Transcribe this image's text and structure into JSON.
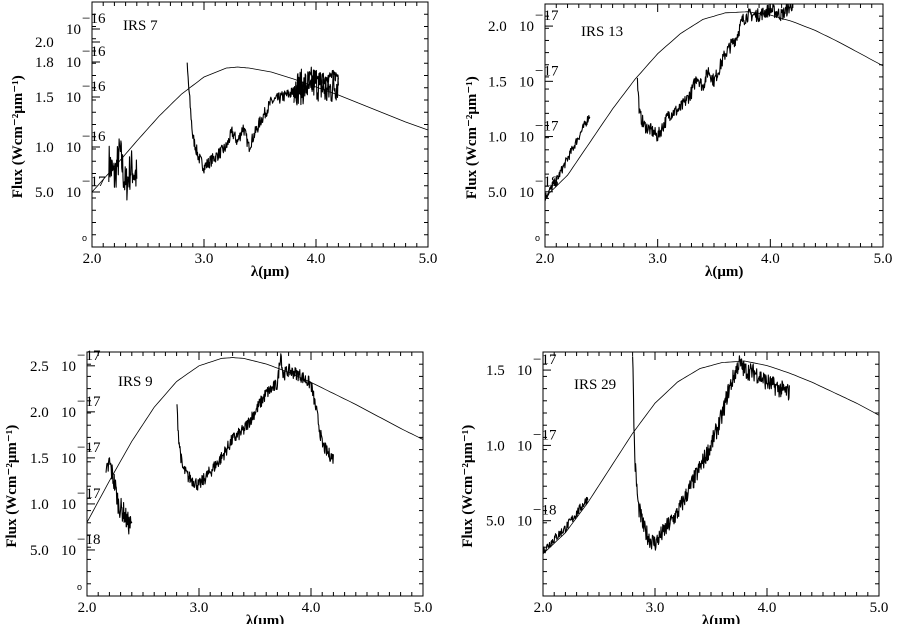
{
  "chart_data": [
    {
      "type": "line",
      "panel_label": "IRS 7",
      "xlabel": "λ(μm)",
      "ylabel": "Flux (Wcm⁻²μm⁻¹)",
      "xlim": [
        2.0,
        5.0
      ],
      "ylim": [
        0.0,
        2.45
      ],
      "x_ticks": [
        "2.0",
        "3.0",
        "4.0",
        "5.0"
      ],
      "y_ticks": [
        {
          "value": 0.55,
          "coef": "5.0",
          "pow": "10",
          "exp": "−17"
        },
        {
          "value": 1.0,
          "coef": "1.0",
          "pow": "10",
          "exp": "−16"
        },
        {
          "value": 1.5,
          "coef": "1.5",
          "pow": "10",
          "exp": "−16"
        },
        {
          "value": 1.85,
          "coef": "1.8",
          "pow": "10",
          "exp": "−16"
        },
        {
          "value": 2.05,
          "coef": "2.0",
          "pow": "",
          "exp": ""
        },
        {
          "value": 2.18,
          "coef": "",
          "pow": "10",
          "exp": "−16"
        }
      ],
      "zero_marker": "o",
      "series": [
        {
          "kind": "model",
          "x": [
            2.0,
            2.2,
            2.4,
            2.6,
            2.8,
            3.0,
            3.2,
            3.3,
            3.4,
            3.6,
            3.8,
            4.0,
            4.2,
            4.4,
            4.6,
            4.8,
            5.0
          ],
          "y": [
            0.55,
            0.8,
            1.06,
            1.31,
            1.53,
            1.7,
            1.79,
            1.8,
            1.79,
            1.75,
            1.68,
            1.6,
            1.52,
            1.43,
            1.34,
            1.25,
            1.17
          ]
        },
        {
          "kind": "spectrum",
          "x": [
            2.15,
            2.2,
            2.25,
            2.3,
            2.35,
            2.4
          ],
          "y": [
            0.85,
            0.7,
            0.95,
            0.6,
            0.8,
            0.7
          ],
          "noise": 0.2
        },
        {
          "kind": "spectrum",
          "x": [
            2.85,
            2.87,
            2.9,
            2.95,
            3.0,
            3.05,
            3.1,
            3.2,
            3.25,
            3.3,
            3.35,
            3.4,
            3.5,
            3.6,
            3.7,
            3.8,
            3.9,
            4.0,
            4.1,
            4.2
          ],
          "y": [
            1.8,
            1.5,
            1.1,
            0.9,
            0.8,
            0.85,
            0.9,
            1.0,
            1.15,
            1.05,
            1.2,
            1.0,
            1.25,
            1.45,
            1.5,
            1.55,
            1.6,
            1.65,
            1.7,
            1.72
          ],
          "noise": 0.06
        },
        {
          "kind": "spectrum",
          "x": [
            3.8,
            3.9,
            4.0,
            4.1,
            4.2
          ],
          "y": [
            1.6,
            1.6,
            1.65,
            1.55,
            1.65
          ],
          "noise": 0.18
        }
      ]
    },
    {
      "type": "line",
      "panel_label": "IRS 13",
      "xlabel": "λ(μm)",
      "ylabel": "Flux (Wcm⁻²μm⁻¹)",
      "xlim": [
        2.0,
        5.0
      ],
      "ylim": [
        0.0,
        2.2
      ],
      "x_ticks": [
        "2.0",
        "3.0",
        "4.0",
        "5.0"
      ],
      "y_ticks": [
        {
          "value": 0.5,
          "coef": "5.0",
          "pow": "10",
          "exp": "−18"
        },
        {
          "value": 1.0,
          "coef": "1.0",
          "pow": "10",
          "exp": "−17"
        },
        {
          "value": 1.5,
          "coef": "1.5",
          "pow": "10",
          "exp": "−17"
        },
        {
          "value": 2.0,
          "coef": "2.0",
          "pow": "10",
          "exp": "−17"
        }
      ],
      "zero_marker": "o",
      "series": [
        {
          "kind": "model",
          "x": [
            2.0,
            2.2,
            2.4,
            2.6,
            2.8,
            3.0,
            3.2,
            3.4,
            3.6,
            3.8,
            4.0,
            4.2,
            4.4,
            4.6,
            4.8,
            5.0
          ],
          "y": [
            0.45,
            0.65,
            0.95,
            1.25,
            1.52,
            1.75,
            1.93,
            2.06,
            2.12,
            2.13,
            2.1,
            2.04,
            1.96,
            1.86,
            1.75,
            1.64
          ]
        },
        {
          "kind": "spectrum",
          "x": [
            2.0,
            2.1,
            2.2,
            2.3,
            2.4
          ],
          "y": [
            0.45,
            0.6,
            0.8,
            1.0,
            1.2
          ],
          "noise": 0.04
        },
        {
          "kind": "spectrum",
          "x": [
            2.82,
            2.84,
            2.88,
            2.95,
            3.0,
            3.05,
            3.1,
            3.2,
            3.3,
            3.35,
            3.4,
            3.45,
            3.5,
            3.6,
            3.7,
            3.75,
            3.8,
            3.9,
            4.0,
            4.1,
            4.2
          ],
          "y": [
            1.5,
            1.2,
            1.1,
            1.05,
            1.0,
            1.1,
            1.2,
            1.25,
            1.4,
            1.55,
            1.45,
            1.6,
            1.5,
            1.75,
            1.9,
            2.05,
            2.1,
            2.1,
            2.15,
            2.1,
            2.2
          ],
          "noise": 0.06
        }
      ]
    },
    {
      "type": "line",
      "panel_label": "IRS 9",
      "xlabel": "λ(μm)",
      "ylabel": "Flux (Wcm⁻²μm⁻¹)",
      "xlim": [
        2.0,
        5.0
      ],
      "ylim": [
        0.0,
        2.65
      ],
      "x_ticks": [
        "2.0",
        "3.0",
        "4.0",
        "5.0"
      ],
      "y_ticks": [
        {
          "value": 0.5,
          "coef": "5.0",
          "pow": "10",
          "exp": "−18"
        },
        {
          "value": 1.0,
          "coef": "1.0",
          "pow": "10",
          "exp": "−17"
        },
        {
          "value": 1.5,
          "coef": "1.5",
          "pow": "10",
          "exp": "−17"
        },
        {
          "value": 2.0,
          "coef": "2.0",
          "pow": "10",
          "exp": "−17"
        },
        {
          "value": 2.5,
          "coef": "2.5",
          "pow": "10",
          "exp": "−17"
        }
      ],
      "zero_marker": "o",
      "series": [
        {
          "kind": "model",
          "x": [
            2.0,
            2.2,
            2.4,
            2.6,
            2.8,
            3.0,
            3.2,
            3.3,
            3.4,
            3.6,
            3.8,
            4.0,
            4.2,
            4.4,
            4.6,
            4.8,
            5.0
          ],
          "y": [
            0.8,
            1.25,
            1.68,
            2.05,
            2.33,
            2.5,
            2.58,
            2.59,
            2.58,
            2.52,
            2.43,
            2.32,
            2.2,
            2.08,
            1.95,
            1.82,
            1.7
          ]
        },
        {
          "kind": "spectrum",
          "x": [
            2.17,
            2.2,
            2.22,
            2.25,
            2.28,
            2.3,
            2.33,
            2.36,
            2.4
          ],
          "y": [
            1.3,
            1.45,
            1.35,
            1.2,
            1.0,
            0.95,
            0.9,
            0.8,
            0.75
          ],
          "noise": 0.12
        },
        {
          "kind": "spectrum",
          "x": [
            2.8,
            2.82,
            2.85,
            2.9,
            2.95,
            3.0,
            3.1,
            3.2,
            3.3,
            3.4,
            3.5,
            3.6,
            3.7,
            3.73,
            3.75,
            3.8,
            3.9,
            4.0,
            4.05,
            4.1,
            4.15,
            4.2
          ],
          "y": [
            2.1,
            1.7,
            1.4,
            1.3,
            1.25,
            1.2,
            1.35,
            1.5,
            1.7,
            1.8,
            2.0,
            2.2,
            2.3,
            2.65,
            2.4,
            2.45,
            2.4,
            2.3,
            2.0,
            1.65,
            1.55,
            1.5
          ],
          "noise": 0.07
        }
      ]
    },
    {
      "type": "line",
      "panel_label": "IRS 29",
      "xlabel": "λ(μm)",
      "ylabel": "Flux (Wcm⁻²μm⁻¹)",
      "xlim": [
        2.0,
        5.0
      ],
      "ylim": [
        0.0,
        1.62
      ],
      "x_ticks": [
        "2.0",
        "3.0",
        "4.0",
        "5.0"
      ],
      "y_ticks": [
        {
          "value": 0.5,
          "coef": "5.0",
          "pow": "10",
          "exp": "−18"
        },
        {
          "value": 1.0,
          "coef": "1.0",
          "pow": "10",
          "exp": "−17"
        },
        {
          "value": 1.5,
          "coef": "1.5",
          "pow": "10",
          "exp": "−17"
        }
      ],
      "zero_marker": "",
      "series": [
        {
          "kind": "model",
          "x": [
            2.0,
            2.2,
            2.4,
            2.6,
            2.8,
            3.0,
            3.2,
            3.4,
            3.6,
            3.8,
            4.0,
            4.2,
            4.4,
            4.6,
            4.8,
            5.0
          ],
          "y": [
            0.28,
            0.42,
            0.62,
            0.85,
            1.08,
            1.28,
            1.42,
            1.51,
            1.55,
            1.56,
            1.53,
            1.48,
            1.42,
            1.35,
            1.28,
            1.2
          ]
        },
        {
          "kind": "spectrum",
          "x": [
            2.0,
            2.1,
            2.2,
            2.3,
            2.4
          ],
          "y": [
            0.3,
            0.38,
            0.45,
            0.55,
            0.65
          ],
          "noise": 0.03
        },
        {
          "kind": "spectrum",
          "x": [
            2.8,
            2.81,
            2.82,
            2.85,
            2.9,
            2.95,
            3.0,
            3.05,
            3.1,
            3.2,
            3.3,
            3.4,
            3.5,
            3.6,
            3.65,
            3.7,
            3.75,
            3.8,
            3.9,
            4.0,
            4.1,
            4.2
          ],
          "y": [
            1.65,
            1.2,
            0.9,
            0.6,
            0.45,
            0.38,
            0.35,
            0.4,
            0.45,
            0.55,
            0.7,
            0.85,
            1.0,
            1.2,
            1.35,
            1.45,
            1.55,
            1.5,
            1.48,
            1.42,
            1.38,
            1.35
          ],
          "noise": 0.06
        }
      ]
    }
  ]
}
